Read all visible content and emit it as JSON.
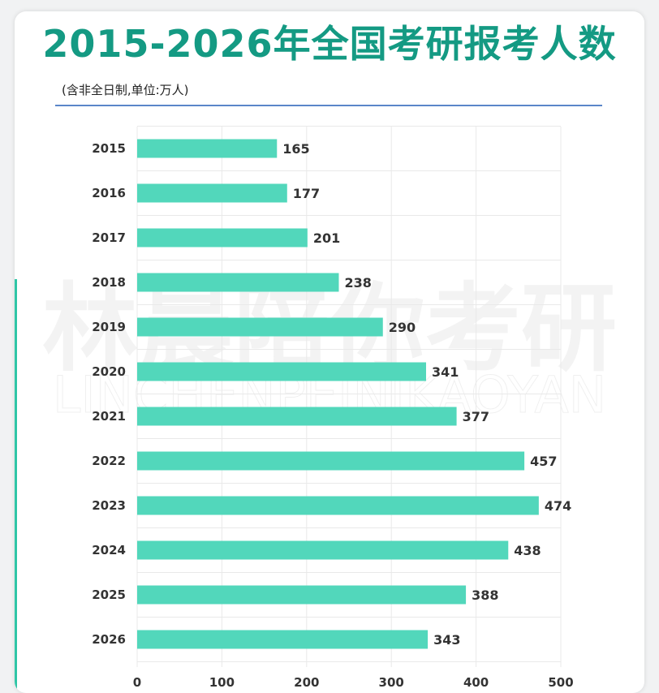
{
  "title": "2015-2026年全国考研报考人数",
  "subtitle": "(含非全日制,单位:万人)",
  "watermark": {
    "cn": "林晨陪你考研",
    "en": "LINCHENPEINIKAOYAN"
  },
  "colors": {
    "bar": "#52d7bb",
    "title": "#149a83",
    "rule": "#5b86c9",
    "grid": "#e9e9e9"
  },
  "chart_data": {
    "type": "bar",
    "orientation": "horizontal",
    "title": "2015-2026年全国考研报考人数",
    "subtitle": "(含非全日制,单位:万人)",
    "categories": [
      "2015",
      "2016",
      "2017",
      "2018",
      "2019",
      "2020",
      "2021",
      "2022",
      "2023",
      "2024",
      "2025",
      "2026"
    ],
    "values": [
      165,
      177,
      201,
      238,
      290,
      341,
      377,
      457,
      474,
      438,
      388,
      343
    ],
    "data_labels": [
      "165",
      "177",
      "201",
      "238",
      "290",
      "341",
      "377",
      "457",
      "474",
      "438",
      "388",
      "343"
    ],
    "xlim": [
      0,
      500
    ],
    "x_ticks": [
      0,
      100,
      200,
      300,
      400,
      500
    ],
    "x_tick_labels": [
      "0",
      "100",
      "200",
      "300",
      "400",
      "500"
    ],
    "grid": true,
    "legend": "none"
  }
}
